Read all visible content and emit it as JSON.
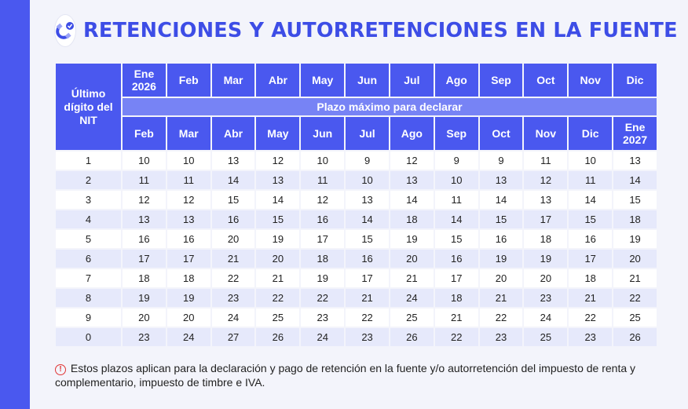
{
  "title": "RETENCIONES Y AUTORRETENCIONES EN LA FUENTE",
  "icons": {
    "logo": "magnet-icon",
    "pointer": "hand-pointer-icon",
    "warning": "warning-icon"
  },
  "colors": {
    "primary": "#4a58ef",
    "title": "#3d4de6",
    "band": "#7783f5",
    "stripe": "#e6e9fb"
  },
  "table": {
    "corner_header": "Último dígito del NIT",
    "period_months": [
      "Ene 2026",
      "Feb",
      "Mar",
      "Abr",
      "May",
      "Jun",
      "Jul",
      "Ago",
      "Sep",
      "Oct",
      "Nov",
      "Dic"
    ],
    "band_label": "Plazo máximo para declarar",
    "due_months": [
      "Feb",
      "Mar",
      "Abr",
      "May",
      "Jun",
      "Jul",
      "Ago",
      "Sep",
      "Oct",
      "Nov",
      "Dic",
      "Ene 2027"
    ],
    "rows": [
      {
        "digit": "1",
        "days": [
          "10",
          "10",
          "13",
          "12",
          "10",
          "9",
          "12",
          "9",
          "9",
          "11",
          "10",
          "13"
        ]
      },
      {
        "digit": "2",
        "days": [
          "11",
          "11",
          "14",
          "13",
          "11",
          "10",
          "13",
          "10",
          "13",
          "12",
          "11",
          "14"
        ]
      },
      {
        "digit": "3",
        "days": [
          "12",
          "12",
          "15",
          "14",
          "12",
          "13",
          "14",
          "11",
          "14",
          "13",
          "14",
          "15"
        ]
      },
      {
        "digit": "4",
        "days": [
          "13",
          "13",
          "16",
          "15",
          "16",
          "14",
          "18",
          "14",
          "15",
          "17",
          "15",
          "18"
        ]
      },
      {
        "digit": "5",
        "days": [
          "16",
          "16",
          "20",
          "19",
          "17",
          "15",
          "19",
          "15",
          "16",
          "18",
          "16",
          "19"
        ]
      },
      {
        "digit": "6",
        "days": [
          "17",
          "17",
          "21",
          "20",
          "18",
          "16",
          "20",
          "16",
          "19",
          "19",
          "17",
          "20"
        ]
      },
      {
        "digit": "7",
        "days": [
          "18",
          "18",
          "22",
          "21",
          "19",
          "17",
          "21",
          "17",
          "20",
          "20",
          "18",
          "21"
        ]
      },
      {
        "digit": "8",
        "days": [
          "19",
          "19",
          "23",
          "22",
          "22",
          "21",
          "24",
          "18",
          "21",
          "23",
          "21",
          "22"
        ]
      },
      {
        "digit": "9",
        "days": [
          "20",
          "20",
          "24",
          "25",
          "23",
          "22",
          "25",
          "21",
          "22",
          "24",
          "22",
          "25"
        ]
      },
      {
        "digit": "0",
        "days": [
          "23",
          "24",
          "27",
          "26",
          "24",
          "23",
          "26",
          "22",
          "23",
          "25",
          "23",
          "26"
        ]
      }
    ]
  },
  "note": "Estos plazos aplican para la declaración y pago de retención en la fuente y/o autorretención del impuesto de renta y complementario, impuesto de timbre e IVA."
}
